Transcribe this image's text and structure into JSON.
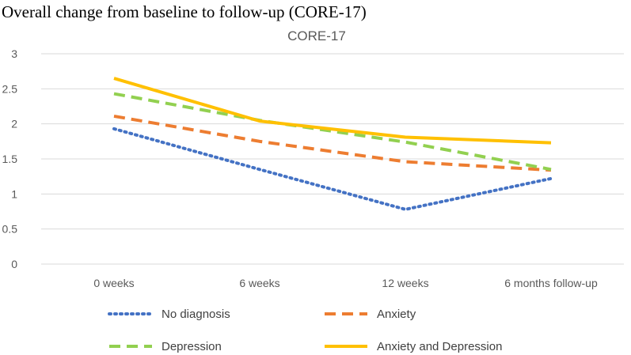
{
  "heading": "Overall change from baseline to follow-up (CORE-17)",
  "chart_data": {
    "type": "line",
    "title": "CORE-17",
    "categories": [
      "0 weeks",
      "6 weeks",
      "12 weeks",
      "6 months follow-up"
    ],
    "ylim": [
      0,
      3
    ],
    "yticks": [
      "0",
      "0.5",
      "1",
      "1.5",
      "2",
      "2.5",
      "3"
    ],
    "ytick_values": [
      0,
      0.5,
      1,
      1.5,
      2,
      2.5,
      3
    ],
    "grid": true,
    "legend_position": "bottom",
    "series": [
      {
        "name": "No diagnosis",
        "values": [
          1.93,
          1.35,
          0.78,
          1.22
        ],
        "color": "#4472C4",
        "style": "dotted"
      },
      {
        "name": "Anxiety",
        "values": [
          2.11,
          1.75,
          1.46,
          1.34
        ],
        "color": "#ED7D31",
        "style": "dashed"
      },
      {
        "name": "Depression",
        "values": [
          2.43,
          2.05,
          1.74,
          1.35
        ],
        "color": "#92D050",
        "style": "dashed"
      },
      {
        "name": "Anxiety and Depression",
        "values": [
          2.65,
          2.04,
          1.81,
          1.73
        ],
        "color": "#FFC000",
        "style": "solid"
      }
    ]
  }
}
